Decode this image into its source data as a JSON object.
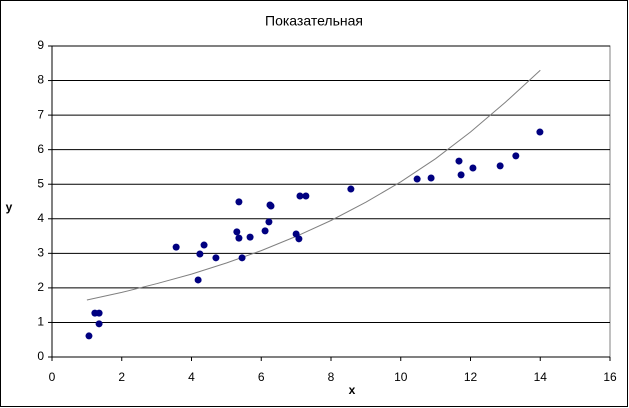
{
  "chart_data": {
    "type": "scatter",
    "title": "Показательная",
    "x_label": "x",
    "y_label": "y",
    "color": "#000080",
    "grid": true,
    "x": [
      1.06,
      1.23,
      1.35,
      1.35,
      3.56,
      4.19,
      4.24,
      4.36,
      4.7,
      5.3,
      5.36,
      5.36,
      5.45,
      5.68,
      6.11,
      6.22,
      6.25,
      6.28,
      7.0,
      7.08,
      7.11,
      7.28,
      8.57,
      10.47,
      10.87,
      11.67,
      11.73,
      12.07,
      12.85,
      13.3,
      13.99
    ],
    "values": [
      0.61,
      1.27,
      1.27,
      0.96,
      3.18,
      2.23,
      2.98,
      3.24,
      2.87,
      3.62,
      4.49,
      3.44,
      2.87,
      3.47,
      3.65,
      3.91,
      4.4,
      4.37,
      3.56,
      3.42,
      4.66,
      4.66,
      4.86,
      5.15,
      5.18,
      5.67,
      5.27,
      5.47,
      5.53,
      5.82,
      6.51
    ],
    "trendline": {
      "color": "#808080",
      "x": [
        1,
        2,
        3,
        4,
        5,
        6,
        7,
        8,
        9,
        10,
        11,
        12,
        13,
        14
      ],
      "values": [
        1.65,
        1.87,
        2.12,
        2.4,
        2.72,
        3.08,
        3.49,
        3.95,
        4.48,
        5.07,
        5.74,
        6.51,
        7.37,
        8.3
      ]
    },
    "xlim": [
      0,
      16
    ],
    "xticks": [
      0,
      2,
      4,
      6,
      8,
      10,
      12,
      14,
      16
    ],
    "ylim": [
      0,
      9
    ],
    "yticks": [
      0,
      1,
      2,
      3,
      4,
      5,
      6,
      7,
      8,
      9
    ]
  }
}
